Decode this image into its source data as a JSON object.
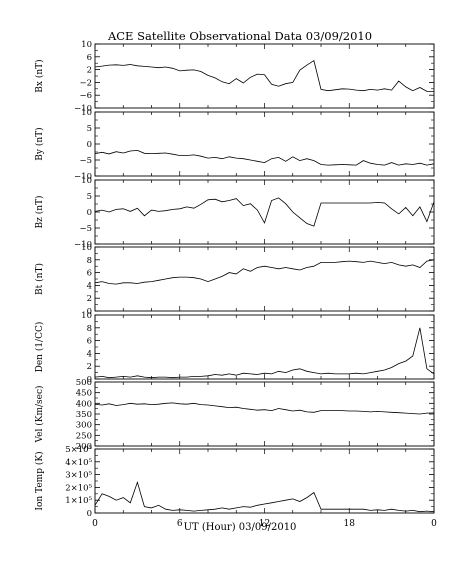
{
  "chart_data": {
    "type": "line",
    "title": "ACE Satellite Observational Data   03/09/2010",
    "xlabel": "UT (Hour)   03/09/2010",
    "x_ticks": [
      "0",
      "6",
      "12",
      "18",
      "0"
    ],
    "xlim": [
      0,
      24
    ],
    "panels": [
      {
        "ylabel": "Bx (nT)",
        "ylim": [
          -10,
          10
        ],
        "y_ticks": [
          -10,
          -6,
          -2,
          2,
          6,
          10
        ],
        "y_tick_labels": [
          "−10",
          "−6",
          "−2",
          "2",
          "6",
          "10"
        ],
        "x": [
          0.0,
          0.5,
          1.0,
          1.5,
          2.0,
          2.5,
          3.0,
          3.5,
          4.0,
          4.5,
          5.0,
          5.5,
          6.0,
          6.5,
          7.0,
          7.5,
          8.0,
          8.5,
          9.0,
          9.5,
          10.0,
          10.5,
          11.0,
          11.5,
          12.0,
          12.5,
          13.0,
          13.5,
          14.0,
          14.5,
          15.0,
          15.5,
          16.0,
          16.5,
          17.0,
          17.5,
          18.0,
          18.5,
          19.0,
          19.5,
          20.0,
          20.5,
          21.0,
          21.5,
          22.0,
          22.5,
          23.0,
          23.5,
          24.0
        ],
        "values": [
          2.8,
          3.1,
          3.4,
          3.5,
          3.3,
          3.6,
          3.2,
          3.0,
          2.8,
          2.6,
          2.8,
          2.4,
          1.6,
          1.8,
          1.9,
          1.4,
          0.2,
          -0.6,
          -1.8,
          -2.4,
          -0.8,
          -2.2,
          -0.4,
          0.6,
          0.4,
          -2.6,
          -3.2,
          -2.4,
          -2.0,
          1.8,
          3.4,
          4.8,
          -4.2,
          -4.6,
          -4.3,
          -4.0,
          -4.1,
          -4.4,
          -4.6,
          -4.2,
          -4.4,
          -4.0,
          -4.4,
          -1.6,
          -3.4,
          -4.6,
          -3.6,
          -4.8,
          -4.8
        ]
      },
      {
        "ylabel": "By (nT)",
        "ylim": [
          -10,
          10
        ],
        "y_ticks": [
          -10,
          -5,
          0,
          5,
          10
        ],
        "y_tick_labels": [
          "−10",
          "−5",
          "0",
          "5",
          "10"
        ],
        "x": [
          0.0,
          0.5,
          1.0,
          1.5,
          2.0,
          2.5,
          3.0,
          3.5,
          4.0,
          4.5,
          5.0,
          5.5,
          6.0,
          6.5,
          7.0,
          7.5,
          8.0,
          8.5,
          9.0,
          9.5,
          10.0,
          10.5,
          11.0,
          11.5,
          12.0,
          12.5,
          13.0,
          13.5,
          14.0,
          14.5,
          15.0,
          15.5,
          16.0,
          16.5,
          17.0,
          17.5,
          18.0,
          18.5,
          19.0,
          19.5,
          20.0,
          20.5,
          21.0,
          21.5,
          22.0,
          22.5,
          23.0,
          23.5,
          24.0
        ],
        "values": [
          -3.0,
          -2.6,
          -3.1,
          -2.4,
          -2.8,
          -2.2,
          -2.0,
          -2.9,
          -3.0,
          -2.9,
          -2.8,
          -3.2,
          -3.6,
          -3.6,
          -3.4,
          -3.8,
          -4.4,
          -4.2,
          -4.6,
          -4.0,
          -4.4,
          -4.6,
          -5.0,
          -5.4,
          -5.8,
          -4.6,
          -4.2,
          -5.4,
          -4.0,
          -5.2,
          -4.6,
          -5.2,
          -6.4,
          -6.6,
          -6.5,
          -6.4,
          -6.5,
          -6.6,
          -5.2,
          -6.0,
          -6.4,
          -6.6,
          -5.8,
          -6.6,
          -6.2,
          -6.4,
          -6.0,
          -6.6,
          -6.2
        ]
      },
      {
        "ylabel": "Bz (nT)",
        "ylim": [
          -10,
          10
        ],
        "y_ticks": [
          -10,
          -5,
          0,
          5,
          10
        ],
        "y_tick_labels": [
          "−10",
          "−5",
          "0",
          "5",
          "10"
        ],
        "x": [
          0.0,
          0.5,
          1.0,
          1.5,
          2.0,
          2.5,
          3.0,
          3.5,
          4.0,
          4.5,
          5.0,
          5.5,
          6.0,
          6.5,
          7.0,
          7.5,
          8.0,
          8.5,
          9.0,
          9.5,
          10.0,
          10.5,
          11.0,
          11.5,
          12.0,
          12.5,
          13.0,
          13.5,
          14.0,
          14.5,
          15.0,
          15.5,
          16.0,
          16.5,
          17.0,
          17.5,
          18.0,
          18.5,
          19.0,
          19.5,
          20.0,
          20.5,
          21.0,
          21.5,
          22.0,
          22.5,
          23.0,
          23.5,
          24.0
        ],
        "values": [
          0.2,
          0.6,
          0.0,
          0.8,
          1.0,
          0.2,
          1.2,
          -1.2,
          0.6,
          0.2,
          0.4,
          0.8,
          1.0,
          1.6,
          1.2,
          2.4,
          3.8,
          4.0,
          3.2,
          3.6,
          4.2,
          2.0,
          2.6,
          0.6,
          -3.4,
          3.6,
          4.4,
          2.6,
          0.0,
          -1.8,
          -3.6,
          -4.4,
          2.8,
          2.8,
          2.8,
          2.8,
          2.8,
          2.8,
          2.8,
          2.8,
          3.0,
          2.8,
          1.0,
          -0.6,
          1.4,
          -1.2,
          1.6,
          -3.0,
          3.2
        ]
      },
      {
        "ylabel": "Bt (nT)",
        "ylim": [
          0,
          10
        ],
        "y_ticks": [
          0,
          2,
          4,
          6,
          8,
          10
        ],
        "y_tick_labels": [
          "0",
          "2",
          "4",
          "6",
          "8",
          "10"
        ],
        "x": [
          0.0,
          0.5,
          1.0,
          1.5,
          2.0,
          2.5,
          3.0,
          3.5,
          4.0,
          4.5,
          5.0,
          5.5,
          6.0,
          6.5,
          7.0,
          7.5,
          8.0,
          8.5,
          9.0,
          9.5,
          10.0,
          10.5,
          11.0,
          11.5,
          12.0,
          12.5,
          13.0,
          13.5,
          14.0,
          14.5,
          15.0,
          15.5,
          16.0,
          16.5,
          17.0,
          17.5,
          18.0,
          18.5,
          19.0,
          19.5,
          20.0,
          20.5,
          21.0,
          21.5,
          22.0,
          22.5,
          23.0,
          23.5,
          24.0
        ],
        "values": [
          4.4,
          4.6,
          4.3,
          4.2,
          4.4,
          4.4,
          4.3,
          4.5,
          4.6,
          4.8,
          5.0,
          5.2,
          5.3,
          5.3,
          5.2,
          5.0,
          4.6,
          5.0,
          5.4,
          6.0,
          5.8,
          6.6,
          6.2,
          6.8,
          7.0,
          6.8,
          6.6,
          6.8,
          6.6,
          6.4,
          6.8,
          7.0,
          7.6,
          7.6,
          7.6,
          7.7,
          7.8,
          7.7,
          7.6,
          7.8,
          7.6,
          7.4,
          7.6,
          7.2,
          7.0,
          7.2,
          6.8,
          7.8,
          8.0
        ]
      },
      {
        "ylabel": "Den (1/CC)",
        "ylim": [
          0,
          10
        ],
        "y_ticks": [
          0,
          2,
          4,
          6,
          8,
          10
        ],
        "y_tick_labels": [
          "0",
          "2",
          "4",
          "6",
          "8",
          "10"
        ],
        "x": [
          0.0,
          0.5,
          1.0,
          1.5,
          2.0,
          2.5,
          3.0,
          3.5,
          4.0,
          4.5,
          5.0,
          5.5,
          6.0,
          6.5,
          7.0,
          7.5,
          8.0,
          8.5,
          9.0,
          9.5,
          10.0,
          10.5,
          11.0,
          11.5,
          12.0,
          12.5,
          13.0,
          13.5,
          14.0,
          14.5,
          15.0,
          15.5,
          16.0,
          16.5,
          17.0,
          17.5,
          18.0,
          18.5,
          19.0,
          19.5,
          20.0,
          20.5,
          21.0,
          21.5,
          22.0,
          22.5,
          23.0,
          23.5,
          24.0
        ],
        "values": [
          0.3,
          0.4,
          0.2,
          0.3,
          0.4,
          0.3,
          0.5,
          0.3,
          0.2,
          0.3,
          0.3,
          0.2,
          0.3,
          0.3,
          0.4,
          0.4,
          0.5,
          0.7,
          0.6,
          0.8,
          0.6,
          0.9,
          0.8,
          0.7,
          0.9,
          0.8,
          1.2,
          1.0,
          1.4,
          1.6,
          1.2,
          1.0,
          0.8,
          0.9,
          0.8,
          0.8,
          0.8,
          0.9,
          0.8,
          1.0,
          1.2,
          1.4,
          1.8,
          2.4,
          2.8,
          3.6,
          8.0,
          1.6,
          0.8
        ]
      },
      {
        "ylabel": "Vel (Km/sec)",
        "ylim": [
          200,
          500
        ],
        "y_ticks": [
          200,
          250,
          300,
          350,
          400,
          450,
          500
        ],
        "y_tick_labels": [
          "200",
          "250",
          "300",
          "350",
          "400",
          "450",
          "500"
        ],
        "x": [
          0.0,
          0.5,
          1.0,
          1.5,
          2.0,
          2.5,
          3.0,
          3.5,
          4.0,
          4.5,
          5.0,
          5.5,
          6.0,
          6.5,
          7.0,
          7.5,
          8.0,
          8.5,
          9.0,
          9.5,
          10.0,
          10.5,
          11.0,
          11.5,
          12.0,
          12.5,
          13.0,
          13.5,
          14.0,
          14.5,
          15.0,
          15.5,
          16.0,
          16.5,
          17.0,
          17.5,
          18.0,
          18.5,
          19.0,
          19.5,
          20.0,
          20.5,
          21.0,
          21.5,
          22.0,
          22.5,
          23.0,
          23.5,
          24.0
        ],
        "values": [
          395,
          392,
          398,
          390,
          394,
          400,
          396,
          398,
          394,
          396,
          400,
          402,
          398,
          396,
          400,
          394,
          392,
          388,
          384,
          380,
          382,
          376,
          372,
          368,
          370,
          366,
          376,
          370,
          364,
          368,
          360,
          358,
          366,
          366,
          366,
          366,
          364,
          364,
          362,
          360,
          362,
          360,
          358,
          356,
          354,
          352,
          350,
          354,
          355
        ]
      },
      {
        "ylabel": "Ion Temp (K)",
        "ylim": [
          0,
          500000
        ],
        "y_ticks": [
          0,
          100000,
          200000,
          300000,
          400000,
          500000
        ],
        "y_tick_labels": [
          "0",
          "1×10⁵",
          "2×10⁵",
          "3×10⁵",
          "4×10⁵",
          "5×10⁵"
        ],
        "x": [
          0.0,
          0.5,
          1.0,
          1.5,
          2.0,
          2.5,
          3.0,
          3.5,
          4.0,
          4.5,
          5.0,
          5.5,
          6.0,
          6.5,
          7.0,
          7.5,
          8.0,
          8.5,
          9.0,
          9.5,
          10.0,
          10.5,
          11.0,
          11.5,
          12.0,
          12.5,
          13.0,
          13.5,
          14.0,
          14.5,
          15.0,
          15.5,
          16.0,
          16.5,
          17.0,
          17.5,
          18.0,
          18.5,
          19.0,
          19.5,
          20.0,
          20.5,
          21.0,
          21.5,
          22.0,
          22.5,
          23.0,
          23.5,
          24.0
        ],
        "values": [
          60000,
          150000,
          130000,
          100000,
          120000,
          80000,
          240000,
          50000,
          40000,
          60000,
          30000,
          20000,
          25000,
          20000,
          15000,
          20000,
          25000,
          30000,
          40000,
          30000,
          40000,
          50000,
          45000,
          60000,
          70000,
          80000,
          90000,
          100000,
          110000,
          90000,
          120000,
          160000,
          30000,
          30000,
          30000,
          30000,
          30000,
          30000,
          30000,
          20000,
          25000,
          20000,
          30000,
          20000,
          15000,
          20000,
          10000,
          15000,
          10000
        ]
      }
    ]
  }
}
